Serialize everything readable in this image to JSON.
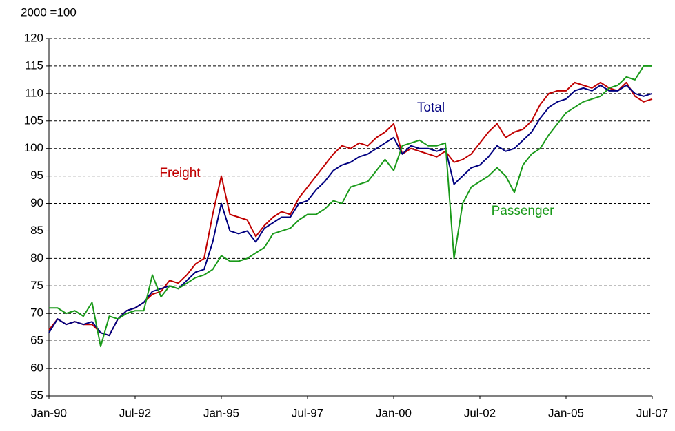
{
  "chart_data": {
    "type": "line",
    "ylabel": "2000 =100",
    "x": [
      "Jan-90",
      "Apr-90",
      "Jul-90",
      "Oct-90",
      "Jan-91",
      "Apr-91",
      "Jul-91",
      "Oct-91",
      "Jan-92",
      "Apr-92",
      "Jul-92",
      "Oct-92",
      "Jan-93",
      "Apr-93",
      "Jul-93",
      "Oct-93",
      "Jan-94",
      "Apr-94",
      "Jul-94",
      "Oct-94",
      "Jan-95",
      "Apr-95",
      "Jul-95",
      "Oct-95",
      "Jan-96",
      "Apr-96",
      "Jul-96",
      "Oct-96",
      "Jan-97",
      "Apr-97",
      "Jul-97",
      "Oct-97",
      "Jan-98",
      "Apr-98",
      "Jul-98",
      "Oct-98",
      "Jan-99",
      "Apr-99",
      "Jul-99",
      "Oct-99",
      "Jan-00",
      "Apr-00",
      "Jul-00",
      "Oct-00",
      "Jan-01",
      "Apr-01",
      "Jul-01",
      "Oct-01",
      "Jan-02",
      "Apr-02",
      "Jul-02",
      "Oct-02",
      "Jan-03",
      "Apr-03",
      "Jul-03",
      "Oct-03",
      "Jan-04",
      "Apr-04",
      "Jul-04",
      "Oct-04",
      "Jan-05",
      "Apr-05",
      "Jul-05",
      "Oct-05",
      "Jan-06",
      "Apr-06",
      "Jul-06",
      "Oct-06",
      "Jan-07",
      "Apr-07",
      "Jul-07"
    ],
    "xticks": [
      "Jan-90",
      "Jul-92",
      "Jan-95",
      "Jul-97",
      "Jan-00",
      "Jul-02",
      "Jan-05",
      "Jul-07"
    ],
    "ylim": [
      55,
      120
    ],
    "yticks": [
      55,
      60,
      65,
      70,
      75,
      80,
      85,
      90,
      95,
      100,
      105,
      110,
      115,
      120
    ],
    "grid": true,
    "series": [
      {
        "name": "Freight",
        "color": "#c00000",
        "values": [
          67,
          69,
          68,
          68.5,
          68,
          68,
          66.5,
          66,
          69,
          70.5,
          71,
          72,
          73.5,
          74,
          76,
          75.5,
          77,
          79,
          80,
          88,
          95,
          88,
          87.5,
          87,
          84,
          86,
          87.5,
          88.5,
          88,
          91,
          93,
          95,
          97,
          99,
          100.5,
          100,
          101,
          100.5,
          102,
          103,
          104.5,
          99,
          100,
          99.5,
          99,
          98.5,
          99.5,
          97.5,
          98,
          99,
          101,
          103,
          104.5,
          102,
          103,
          103.5,
          105,
          108,
          110,
          110.5,
          110.5,
          112,
          111.5,
          111,
          112,
          111,
          110.5,
          112,
          109.5,
          108.5,
          109
        ]
      },
      {
        "name": "Total",
        "color": "#000080",
        "values": [
          66.5,
          69,
          68,
          68.5,
          68,
          68.5,
          66.5,
          66,
          69,
          70.5,
          71,
          72,
          74,
          74.5,
          75,
          74.5,
          76,
          77.5,
          78,
          83,
          90,
          85,
          84.5,
          85,
          83,
          85.5,
          86.5,
          87.5,
          87.5,
          90,
          90.5,
          92.5,
          94,
          96,
          97,
          97.5,
          98.5,
          99,
          100,
          101,
          102,
          99,
          100.5,
          100,
          100,
          99.5,
          100,
          93.5,
          95,
          96.5,
          97,
          98.5,
          100.5,
          99.5,
          100,
          101.5,
          103,
          105.5,
          107.5,
          108.5,
          109,
          110.5,
          111,
          110.5,
          111.5,
          110.5,
          110.5,
          111.5,
          110,
          109.5,
          110
        ]
      },
      {
        "name": "Passenger",
        "color": "#1a9a1a",
        "values": [
          71,
          71,
          70,
          70.5,
          69.5,
          72,
          64,
          69.5,
          69,
          70,
          70.5,
          70.5,
          77,
          73,
          75,
          74.5,
          75.5,
          76.5,
          77,
          78,
          80.5,
          79.5,
          79.5,
          80,
          81,
          82,
          84.5,
          85,
          85.5,
          87,
          88,
          88,
          89,
          90.5,
          90,
          93,
          93.5,
          94,
          96,
          98,
          96,
          100.5,
          101,
          101.5,
          100.5,
          100.5,
          101,
          80,
          90,
          93,
          94,
          95,
          96.5,
          95,
          92,
          97,
          99,
          100,
          102.5,
          104.5,
          106.5,
          107.5,
          108.5,
          109,
          109.5,
          111,
          111.5,
          113,
          112.5,
          115,
          115
        ]
      }
    ]
  }
}
